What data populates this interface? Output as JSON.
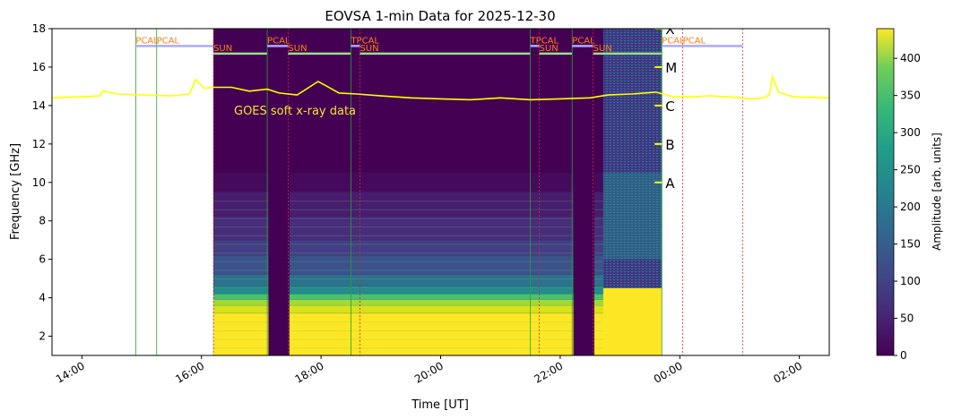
{
  "chart_data": {
    "type": "heatmap",
    "title": "EOVSA 1-min Data for 2025-12-30",
    "xlabel": "Time [UT]",
    "ylabel": "Frequency [GHz]",
    "colorbar_label": "Amplitude [arb. units]",
    "xlim_hours": [
      13.5,
      26.5
    ],
    "ylim": [
      1.0,
      18.0
    ],
    "x_tick_labels": [
      "14:00",
      "16:00",
      "18:00",
      "20:00",
      "22:00",
      "00:00",
      "02:00"
    ],
    "x_tick_hours": [
      14,
      16,
      18,
      20,
      22,
      24,
      26
    ],
    "y_ticks": [
      2,
      4,
      6,
      8,
      10,
      12,
      14,
      16,
      18
    ],
    "colorbar_ticks": [
      0,
      50,
      100,
      150,
      200,
      250,
      300,
      350,
      400
    ],
    "colorbar_range": [
      0,
      440
    ],
    "colormap": "viridis",
    "data_start_hours": 16.2,
    "data_end_hours": 23.7,
    "data_gaps_hours": [
      [
        17.12,
        17.47
      ],
      [
        22.22,
        22.57
      ]
    ],
    "noisy_segment_hours": [
      22.72,
      23.7
    ],
    "goes_label": "GOES soft x-ray data",
    "goes_class_labels": [
      "A",
      "B",
      "C",
      "M",
      "X"
    ],
    "goes_class_y": [
      10.0,
      12.0,
      14.0,
      16.0,
      18.0
    ],
    "goes_curve": [
      [
        13.5,
        14.4
      ],
      [
        14.0,
        14.45
      ],
      [
        14.3,
        14.5
      ],
      [
        14.35,
        14.75
      ],
      [
        14.6,
        14.6
      ],
      [
        15.0,
        14.55
      ],
      [
        15.5,
        14.5
      ],
      [
        15.8,
        14.6
      ],
      [
        15.9,
        15.35
      ],
      [
        16.05,
        14.9
      ],
      [
        16.2,
        14.95
      ],
      [
        16.5,
        14.95
      ],
      [
        16.8,
        14.75
      ],
      [
        17.1,
        14.85
      ],
      [
        17.3,
        14.65
      ],
      [
        17.6,
        14.55
      ],
      [
        17.8,
        14.95
      ],
      [
        17.95,
        15.25
      ],
      [
        18.1,
        15.0
      ],
      [
        18.3,
        14.65
      ],
      [
        18.6,
        14.6
      ],
      [
        19.0,
        14.5
      ],
      [
        19.5,
        14.4
      ],
      [
        20.0,
        14.35
      ],
      [
        20.5,
        14.3
      ],
      [
        21.0,
        14.4
      ],
      [
        21.5,
        14.3
      ],
      [
        22.0,
        14.35
      ],
      [
        22.5,
        14.4
      ],
      [
        22.8,
        14.55
      ],
      [
        23.2,
        14.6
      ],
      [
        23.6,
        14.7
      ],
      [
        23.9,
        14.45
      ],
      [
        24.2,
        14.45
      ],
      [
        24.5,
        14.5
      ],
      [
        24.8,
        14.45
      ],
      [
        25.2,
        14.35
      ],
      [
        25.4,
        14.4
      ],
      [
        25.5,
        14.55
      ],
      [
        25.55,
        15.5
      ],
      [
        25.65,
        14.7
      ],
      [
        25.9,
        14.45
      ],
      [
        26.5,
        14.4
      ]
    ],
    "markers": [
      {
        "label": "PCAL",
        "start": 14.9,
        "end": 15.25,
        "level": 17.1,
        "color": "#aaaaff",
        "line": "#2ca02c"
      },
      {
        "label": "PCAL",
        "start": 15.25,
        "end": 16.2,
        "level": 17.1,
        "color": "#aaaaff",
        "line": "#2ca02c"
      },
      {
        "label": "SUN",
        "start": 16.2,
        "end": 17.1,
        "level": 16.7,
        "color": "#98df8a",
        "line": "#d62728"
      },
      {
        "label": "PCAL",
        "start": 17.1,
        "end": 17.45,
        "level": 17.1,
        "color": "#aaaaff",
        "line": "#2ca02c"
      },
      {
        "label": "SUN",
        "start": 17.45,
        "end": 18.5,
        "level": 16.7,
        "color": "#98df8a",
        "line": "#d62728"
      },
      {
        "label": "TPCAL",
        "start": 18.5,
        "end": 18.65,
        "level": 17.1,
        "color": "#aaaaff",
        "line": "#2ca02c"
      },
      {
        "label": "SUN",
        "start": 18.65,
        "end": 21.5,
        "level": 16.7,
        "color": "#98df8a",
        "line": "#d62728"
      },
      {
        "label": "TPCAL",
        "start": 21.5,
        "end": 21.65,
        "level": 17.1,
        "color": "#aaaaff",
        "line": "#2ca02c"
      },
      {
        "label": "SUN",
        "start": 21.65,
        "end": 22.2,
        "level": 16.7,
        "color": "#98df8a",
        "line": "#d62728"
      },
      {
        "label": "PCAL",
        "start": 22.2,
        "end": 22.55,
        "level": 17.1,
        "color": "#aaaaff",
        "line": "#2ca02c"
      },
      {
        "label": "SUN",
        "start": 22.55,
        "end": 23.7,
        "level": 16.7,
        "color": "#98df8a",
        "line": "#d62728"
      },
      {
        "label": "PCAL",
        "start": 23.7,
        "end": 24.05,
        "level": 17.1,
        "color": "#aaaaff",
        "line": "#2ca02c"
      },
      {
        "label": "PCAL",
        "start": 24.05,
        "end": 25.05,
        "level": 17.1,
        "color": "#aaaaff",
        "line": "#d62728"
      }
    ]
  }
}
